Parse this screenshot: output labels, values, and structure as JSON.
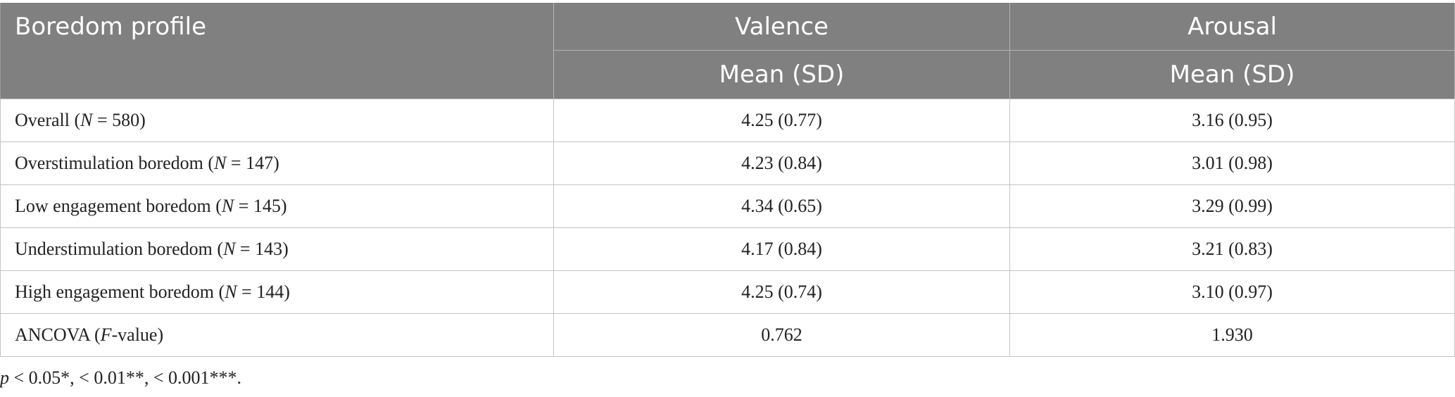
{
  "header": {
    "col1": "Boredom profile",
    "col2": "Valence",
    "col3": "Arousal",
    "sub2": "Mean (SD)",
    "sub3": "Mean (SD)"
  },
  "rows": [
    {
      "label_pre": "Overall (",
      "label_var": "N",
      "label_post": " = 580)",
      "valence": "4.25 (0.77)",
      "arousal": "3.16 (0.95)"
    },
    {
      "label_pre": "Overstimulation boredom (",
      "label_var": "N",
      "label_post": " = 147)",
      "valence": "4.23 (0.84)",
      "arousal": "3.01 (0.98)"
    },
    {
      "label_pre": "Low engagement boredom (",
      "label_var": "N",
      "label_post": " = 145)",
      "valence": "4.34 (0.65)",
      "arousal": "3.29 (0.99)"
    },
    {
      "label_pre": "Understimulation boredom (",
      "label_var": "N",
      "label_post": " = 143)",
      "valence": "4.17 (0.84)",
      "arousal": "3.21 (0.83)"
    },
    {
      "label_pre": "High engagement boredom (",
      "label_var": "N",
      "label_post": " = 144)",
      "valence": "4.25 (0.74)",
      "arousal": "3.10 (0.97)"
    },
    {
      "label_pre": "ANCOVA (",
      "label_var": "F",
      "label_post": "-value)",
      "valence": "0.762",
      "arousal": "1.930"
    }
  ],
  "footnote": {
    "var": "p",
    "text": " < 0.05*, < 0.01**, < 0.001***."
  }
}
